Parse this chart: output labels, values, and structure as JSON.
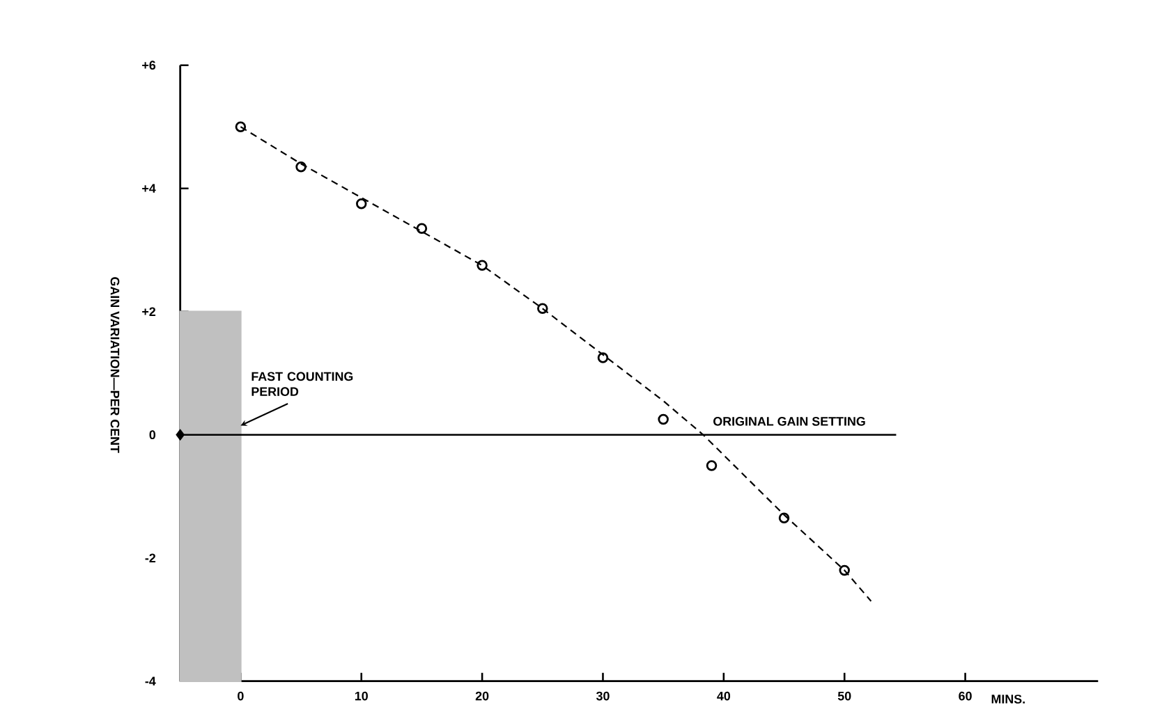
{
  "chart_data": {
    "type": "scatter",
    "xlabel": "MINS.",
    "ylabel": "GAIN VARIATION—PER CENT",
    "xlim": [
      -5,
      71
    ],
    "ylim": [
      -4,
      6
    ],
    "xticks": [
      0,
      10,
      20,
      30,
      40,
      50,
      60
    ],
    "yticks": [
      {
        "value": 6,
        "label": "+6"
      },
      {
        "value": 4,
        "label": "+4"
      },
      {
        "value": 2,
        "label": "+2"
      },
      0,
      -2,
      -4
    ],
    "series": [
      {
        "marker": "circle",
        "color": "#000000",
        "x": [
          0,
          5,
          10,
          15,
          20,
          25,
          30,
          35,
          39,
          45,
          50
        ],
        "values": [
          5.0,
          4.35,
          3.75,
          3.35,
          2.75,
          2.05,
          1.25,
          0.25,
          -0.5,
          -1.35,
          -2.2
        ]
      },
      {
        "type": "line",
        "line_style": "dashed",
        "marker": "none",
        "color": "#000000",
        "x": [
          0,
          5,
          10,
          15,
          20,
          25,
          30,
          35,
          38.3,
          45,
          50,
          52.2
        ],
        "values": [
          5.0,
          4.4,
          3.85,
          3.3,
          2.75,
          2.05,
          1.3,
          0.55,
          0,
          -1.3,
          -2.2,
          -2.7
        ]
      },
      {
        "type": "scatter",
        "marker": "diamond",
        "color": "#000000",
        "x": [
          -5
        ],
        "values": [
          0
        ]
      }
    ],
    "ref_lines": [
      {
        "axis": "y",
        "value": 0,
        "label": "ORIGINAL GAIN SETTING",
        "color": "#000000"
      }
    ],
    "bands": [
      {
        "axis": "x",
        "from": -5,
        "to": 0,
        "label": "FAST COUNTING PERIOD",
        "color": "#c0c0c0"
      }
    ]
  }
}
